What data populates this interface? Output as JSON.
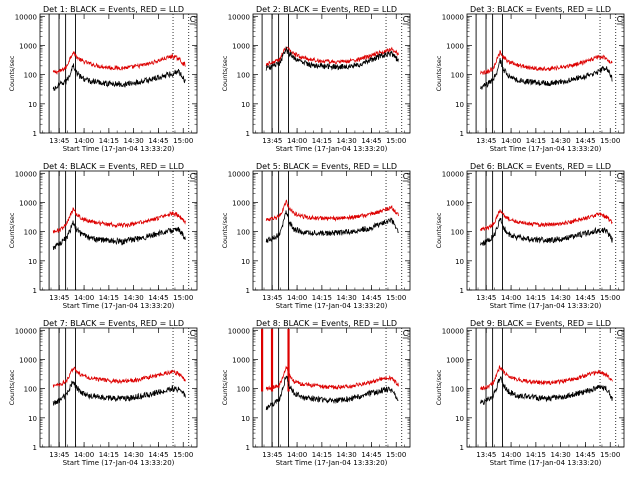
{
  "figure": {
    "x_axis_label": "Start Time (17-Jan-04 13:33:20)",
    "y_axis_label": "Counts/sec",
    "ticks": {
      "y": [
        "1",
        "10",
        "100",
        "1000",
        "10000"
      ],
      "x_left_col": [
        "13:45",
        "14:00",
        "14:15",
        "14:30",
        "14:45",
        "15:00"
      ],
      "x_other_cols": [
        "13:45",
        "14:00",
        "14:15",
        "14:30",
        "14:45",
        "15:00"
      ]
    }
  },
  "panels": [
    {
      "title": "Det 1: BLACK = Events, RED = LLD",
      "corner_label": "C"
    },
    {
      "title": "Det 2: BLACK = Events, RED = LLD",
      "corner_label": "C"
    },
    {
      "title": "Det 3: BLACK = Events, RED = LLD",
      "corner_label": "C"
    },
    {
      "title": "Det 4: BLACK = Events, RED = LLD",
      "corner_label": "C"
    },
    {
      "title": "Det 5: BLACK = Events, RED = LLD",
      "corner_label": "C"
    },
    {
      "title": "Det 6: BLACK = Events, RED = LLD",
      "corner_label": "C"
    },
    {
      "title": "Det 7: BLACK = Events, RED = LLD",
      "corner_label": "C"
    },
    {
      "title": "Det 8: BLACK = Events, RED = LLD",
      "corner_label": "C"
    },
    {
      "title": "Det 9: BLACK = Events, RED = LLD",
      "corner_label": "C"
    }
  ],
  "colors": {
    "events": "#000000",
    "lld": "#dd0000",
    "axes": "#000000"
  },
  "chart_data": [
    {
      "type": "line",
      "title": "Det 1: BLACK = Events, RED = LLD",
      "xlabel": "Start Time (17-Jan-04 13:33:20)",
      "ylabel": "Counts/sec",
      "x_unit": "minutes since 13:33:20",
      "xlim": [
        0,
        95
      ],
      "ylim": [
        1,
        12000
      ],
      "yscale": "log",
      "x": [
        8,
        12,
        16,
        18,
        20,
        22,
        25,
        30,
        35,
        40,
        45,
        50,
        55,
        60,
        65,
        70,
        75,
        80,
        84,
        86,
        88
      ],
      "series": [
        {
          "name": "LLD",
          "values": [
            120,
            130,
            180,
            350,
            600,
            420,
            300,
            240,
            200,
            180,
            170,
            170,
            180,
            200,
            230,
            280,
            350,
            430,
            350,
            260,
            220
          ]
        },
        {
          "name": "Events",
          "values": [
            30,
            45,
            60,
            100,
            220,
            120,
            80,
            60,
            55,
            50,
            48,
            46,
            50,
            55,
            65,
            75,
            90,
            110,
            130,
            90,
            60
          ]
        }
      ],
      "vertical_lines_minutes": [
        5.5,
        11.5,
        15.5,
        21.5,
        80.5,
        90
      ]
    },
    {
      "type": "line",
      "title": "Det 2: BLACK = Events, RED = LLD",
      "xlabel": "Start Time (17-Jan-04 13:33:20)",
      "ylabel": "Counts/sec",
      "x_unit": "minutes since 13:33:20",
      "xlim": [
        0,
        95
      ],
      "ylim": [
        1,
        12000
      ],
      "yscale": "log",
      "x": [
        8,
        12,
        16,
        18,
        20,
        22,
        25,
        30,
        35,
        40,
        45,
        50,
        55,
        60,
        65,
        70,
        75,
        80,
        84,
        86,
        88
      ],
      "series": [
        {
          "name": "LLD",
          "values": [
            230,
            260,
            320,
            550,
            850,
            700,
            520,
            380,
            330,
            300,
            280,
            270,
            280,
            300,
            340,
            420,
            520,
            650,
            720,
            600,
            500
          ]
        },
        {
          "name": "Events",
          "values": [
            170,
            190,
            240,
            420,
            700,
            550,
            380,
            260,
            220,
            200,
            190,
            185,
            190,
            200,
            230,
            290,
            380,
            480,
            520,
            400,
            300
          ]
        }
      ],
      "vertical_lines_minutes": [
        5.5,
        11.5,
        15.5,
        21.5,
        80.5,
        90
      ]
    },
    {
      "type": "line",
      "title": "Det 3: BLACK = Events, RED = LLD",
      "xlabel": "Start Time (17-Jan-04 13:33:20)",
      "ylabel": "Counts/sec",
      "x_unit": "minutes since 13:33:20",
      "xlim": [
        0,
        95
      ],
      "ylim": [
        1,
        12000
      ],
      "yscale": "log",
      "x": [
        8,
        12,
        16,
        18,
        20,
        22,
        25,
        30,
        35,
        40,
        45,
        50,
        55,
        60,
        65,
        70,
        75,
        80,
        84,
        86,
        88
      ],
      "series": [
        {
          "name": "LLD",
          "values": [
            110,
            120,
            170,
            320,
            600,
            400,
            280,
            220,
            190,
            170,
            160,
            160,
            170,
            190,
            220,
            260,
            330,
            420,
            380,
            300,
            250
          ]
        },
        {
          "name": "Events",
          "values": [
            35,
            45,
            70,
            120,
            320,
            150,
            90,
            65,
            58,
            55,
            52,
            50,
            55,
            60,
            70,
            85,
            100,
            130,
            170,
            120,
            70
          ]
        }
      ],
      "vertical_lines_minutes": [
        5.5,
        11.5,
        15.5,
        21.5,
        80.5,
        90
      ]
    },
    {
      "type": "line",
      "title": "Det 4: BLACK = Events, RED = LLD",
      "xlabel": "Start Time (17-Jan-04 13:33:20)",
      "ylabel": "Counts/sec",
      "x_unit": "minutes since 13:33:20",
      "xlim": [
        0,
        95
      ],
      "ylim": [
        1,
        12000
      ],
      "yscale": "log",
      "x": [
        8,
        12,
        16,
        18,
        20,
        22,
        25,
        30,
        35,
        40,
        45,
        50,
        55,
        60,
        65,
        70,
        75,
        80,
        84,
        86,
        88
      ],
      "series": [
        {
          "name": "LLD",
          "values": [
            100,
            115,
            170,
            330,
            600,
            420,
            290,
            230,
            200,
            180,
            170,
            165,
            175,
            200,
            230,
            270,
            340,
            420,
            360,
            260,
            210
          ]
        },
        {
          "name": "Events",
          "values": [
            28,
            40,
            60,
            100,
            220,
            120,
            80,
            62,
            55,
            50,
            48,
            46,
            52,
            58,
            68,
            80,
            95,
            110,
            120,
            80,
            55
          ]
        }
      ],
      "vertical_lines_minutes": [
        5.5,
        11.5,
        15.5,
        21.5,
        80.5,
        90
      ]
    },
    {
      "type": "line",
      "title": "Det 5: BLACK = Events, RED = LLD",
      "xlabel": "Start Time (17-Jan-04 13:33:20)",
      "ylabel": "Counts/sec",
      "x_unit": "minutes since 13:33:20",
      "xlim": [
        0,
        95
      ],
      "ylim": [
        1,
        12000
      ],
      "yscale": "log",
      "x": [
        8,
        12,
        16,
        18,
        20,
        22,
        25,
        30,
        35,
        40,
        45,
        50,
        55,
        60,
        65,
        70,
        75,
        80,
        84,
        86,
        88
      ],
      "series": [
        {
          "name": "LLD",
          "values": [
            260,
            270,
            330,
            550,
            1100,
            650,
            420,
            330,
            300,
            290,
            285,
            285,
            295,
            310,
            340,
            380,
            450,
            560,
            680,
            480,
            380
          ]
        },
        {
          "name": "Events",
          "values": [
            50,
            60,
            90,
            180,
            520,
            200,
            120,
            95,
            90,
            88,
            88,
            90,
            95,
            100,
            115,
            130,
            160,
            210,
            250,
            160,
            90
          ]
        }
      ],
      "vertical_lines_minutes": [
        5.5,
        11.5,
        15.5,
        21.5,
        80.5,
        90
      ]
    },
    {
      "type": "line",
      "title": "Det 6: BLACK = Events, RED = LLD",
      "xlabel": "Start Time (17-Jan-04 13:33:20)",
      "ylabel": "Counts/sec",
      "x_unit": "minutes since 13:33:20",
      "xlim": [
        0,
        95
      ],
      "ylim": [
        1,
        12000
      ],
      "yscale": "log",
      "x": [
        8,
        12,
        16,
        18,
        20,
        22,
        25,
        30,
        35,
        40,
        45,
        50,
        55,
        60,
        65,
        70,
        75,
        80,
        84,
        86,
        88
      ],
      "series": [
        {
          "name": "LLD",
          "values": [
            120,
            130,
            180,
            320,
            580,
            400,
            280,
            220,
            195,
            180,
            170,
            170,
            180,
            200,
            230,
            270,
            330,
            400,
            330,
            250,
            200
          ]
        },
        {
          "name": "Events",
          "values": [
            35,
            45,
            70,
            120,
            300,
            140,
            85,
            65,
            58,
            54,
            52,
            50,
            55,
            60,
            70,
            80,
            95,
            115,
            110,
            75,
            50
          ]
        }
      ],
      "vertical_lines_minutes": [
        5.5,
        11.5,
        15.5,
        21.5,
        80.5,
        90
      ]
    },
    {
      "type": "line",
      "title": "Det 7: BLACK = Events, RED = LLD",
      "xlabel": "Start Time (17-Jan-04 13:33:20)",
      "ylabel": "Counts/sec",
      "x_unit": "minutes since 13:33:20",
      "xlim": [
        0,
        95
      ],
      "ylim": [
        1,
        12000
      ],
      "yscale": "log",
      "x": [
        8,
        12,
        16,
        18,
        20,
        22,
        25,
        30,
        35,
        40,
        45,
        50,
        55,
        60,
        65,
        70,
        75,
        80,
        84,
        86,
        88
      ],
      "series": [
        {
          "name": "LLD",
          "values": [
            120,
            140,
            180,
            300,
            520,
            400,
            300,
            240,
            210,
            190,
            180,
            175,
            185,
            210,
            240,
            280,
            330,
            380,
            320,
            250,
            190
          ]
        },
        {
          "name": "Events",
          "values": [
            30,
            40,
            60,
            100,
            190,
            110,
            75,
            58,
            52,
            48,
            46,
            45,
            48,
            55,
            62,
            72,
            85,
            100,
            95,
            75,
            55
          ]
        }
      ],
      "vertical_lines_minutes": [
        5.5,
        11.5,
        15.5,
        21.5,
        80.5,
        90
      ]
    },
    {
      "type": "line",
      "title": "Det 8: BLACK = Events, RED = LLD",
      "xlabel": "Start Time (17-Jan-04 13:33:20)",
      "ylabel": "Counts/sec",
      "x_unit": "minutes since 13:33:20",
      "xlim": [
        0,
        95
      ],
      "ylim": [
        1,
        12000
      ],
      "yscale": "log",
      "x": [
        8,
        12,
        16,
        18,
        20,
        22,
        25,
        30,
        35,
        40,
        45,
        50,
        55,
        60,
        65,
        70,
        75,
        80,
        84,
        86,
        88
      ],
      "series": [
        {
          "name": "LLD",
          "values": [
            100,
            110,
            130,
            250,
            600,
            300,
            170,
            140,
            130,
            120,
            115,
            112,
            115,
            125,
            140,
            160,
            190,
            240,
            220,
            170,
            140
          ]
        },
        {
          "name": "Events",
          "values": [
            20,
            30,
            45,
            90,
            300,
            120,
            70,
            50,
            45,
            42,
            40,
            38,
            42,
            48,
            55,
            65,
            78,
            95,
            90,
            65,
            40
          ]
        }
      ],
      "vertical_lines_minutes": [
        5.5,
        11.5,
        15.5,
        21.5,
        80.5,
        90
      ],
      "red_spikes_minutes": [
        5.5,
        11.5,
        21.5
      ]
    },
    {
      "type": "line",
      "title": "Det 9: BLACK = Events, RED = LLD",
      "xlabel": "Start Time (17-Jan-04 13:33:20)",
      "ylabel": "Counts/sec",
      "x_unit": "minutes since 13:33:20",
      "xlim": [
        0,
        95
      ],
      "ylim": [
        1,
        12000
      ],
      "yscale": "log",
      "x": [
        8,
        12,
        16,
        18,
        20,
        22,
        25,
        30,
        35,
        40,
        45,
        50,
        55,
        60,
        65,
        70,
        75,
        80,
        84,
        86,
        88
      ],
      "series": [
        {
          "name": "LLD",
          "values": [
            100,
            115,
            160,
            300,
            560,
            380,
            270,
            210,
            185,
            170,
            160,
            160,
            170,
            190,
            220,
            260,
            320,
            380,
            320,
            240,
            190
          ]
        },
        {
          "name": "Events",
          "values": [
            30,
            40,
            60,
            110,
            260,
            130,
            80,
            60,
            54,
            50,
            48,
            46,
            50,
            56,
            64,
            75,
            90,
            110,
            100,
            70,
            45
          ]
        }
      ],
      "vertical_lines_minutes": [
        5.5,
        11.5,
        15.5,
        21.5,
        80.5,
        90
      ]
    }
  ]
}
